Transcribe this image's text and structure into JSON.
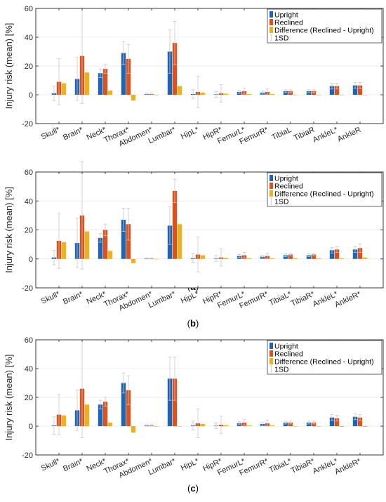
{
  "colors": {
    "upright": "#1f63b4",
    "reclined": "#d9531e",
    "difference": "#edb120",
    "error_bar": "#c8c8c8",
    "axis": "#262626",
    "grid": "#e6e6e6"
  },
  "chart_data": [
    {
      "type": "bar",
      "panel_label": "(a)",
      "ylabel": "Injury risk (mean) [%]",
      "ylim": [
        -20,
        60
      ],
      "yticks": [
        -20,
        0,
        20,
        40,
        60
      ],
      "grid": "horizontal",
      "legend_position": "top-right",
      "categories": [
        "Skull*",
        "Brain*",
        "Neck*",
        "Thorax*",
        "Abdomen*",
        "Lumbar*",
        "HipL*",
        "HipR*",
        "FemurL*",
        "FemurR*",
        "TibiaL",
        "TibiaR",
        "AnkleL*",
        "AnkleR"
      ],
      "series": [
        {
          "name": "Upright",
          "values": [
            1,
            11,
            15,
            29,
            0.5,
            30,
            0.5,
            0.3,
            2,
            1.5,
            2.5,
            2.5,
            6,
            6.5
          ],
          "sd": [
            5,
            15,
            3,
            8,
            0.5,
            15,
            3,
            2,
            1,
            1,
            1,
            1,
            2,
            2
          ]
        },
        {
          "name": "Reclined",
          "values": [
            9,
            27,
            18,
            25,
            0.5,
            36,
            2,
            1,
            2.5,
            2,
            2.5,
            2.5,
            6,
            6.5
          ],
          "sd": [
            16,
            33,
            3,
            10,
            0.5,
            15,
            11,
            6,
            2,
            2,
            1,
            1,
            2,
            2
          ]
        },
        {
          "name": "Difference (Reclined - Upright)",
          "values": [
            8,
            15.5,
            3,
            -4,
            0,
            6,
            1.5,
            0.7,
            0.5,
            0.5,
            0,
            0,
            0,
            0
          ]
        }
      ],
      "error_bar_label": "1SD"
    },
    {
      "type": "bar",
      "panel_label": "(b)",
      "ylabel": "Injury risk (mean) [%]",
      "ylim": [
        -20,
        60
      ],
      "yticks": [
        -20,
        0,
        20,
        40,
        60
      ],
      "grid": "horizontal",
      "legend_position": "top-right",
      "categories": [
        "Skull*",
        "Brain*",
        "Neck*",
        "Thorax*",
        "Abdomen*",
        "Lumbar*",
        "HipL*",
        "HipR*",
        "FemurL*",
        "FemurR*",
        "TibiaL*",
        "TibiaR*",
        "AnkleL*",
        "AnkleR*"
      ],
      "series": [
        {
          "name": "Upright",
          "values": [
            1,
            11,
            14.5,
            27,
            0.3,
            23,
            0.5,
            0.3,
            2,
            1.5,
            2.5,
            2.5,
            6,
            6.5
          ],
          "sd": [
            5,
            17,
            3,
            8,
            0.3,
            13,
            3,
            2,
            1,
            1,
            1,
            1,
            2,
            2
          ]
        },
        {
          "name": "Reclined",
          "values": [
            12.5,
            30,
            20,
            24,
            0.3,
            47,
            3,
            1,
            2.5,
            2,
            3,
            3,
            6.5,
            7.5
          ],
          "sd": [
            19,
            37,
            4,
            11,
            0.3,
            8,
            12,
            6,
            2,
            2,
            1,
            1,
            2,
            3
          ]
        },
        {
          "name": "Difference (Reclined - Upright)",
          "values": [
            11.5,
            19,
            5.5,
            -3,
            0,
            24,
            2.5,
            0.7,
            0.5,
            0.5,
            0.5,
            0.5,
            0.5,
            1
          ]
        }
      ],
      "error_bar_label": "1SD"
    },
    {
      "type": "bar",
      "panel_label": "(c)",
      "ylabel": "Injury risk (mean) [%]",
      "ylim": [
        -20,
        60
      ],
      "yticks": [
        -20,
        0,
        20,
        40,
        60
      ],
      "grid": "horizontal",
      "legend_position": "top-right",
      "categories": [
        "Skull*",
        "Brain*",
        "Neck*",
        "Thorax*",
        "Abdomen*",
        "Lumbar*",
        "HipL*",
        "HipR*",
        "FemurL*",
        "FemurR*",
        "TibiaL*",
        "TibiaR*",
        "AnkleL*",
        "AnkleR*"
      ],
      "series": [
        {
          "name": "Upright",
          "values": [
            0.5,
            11,
            15,
            30,
            0.5,
            33,
            0.5,
            0.3,
            2,
            1.5,
            2.5,
            2.5,
            6,
            6.5
          ],
          "sd": [
            6,
            14,
            3,
            7,
            0.5,
            15,
            3,
            2,
            1,
            1,
            1,
            1,
            2,
            2
          ]
        },
        {
          "name": "Reclined",
          "values": [
            8,
            26,
            17,
            25,
            0.5,
            33,
            2,
            1,
            2.5,
            2,
            2.5,
            2.5,
            5.5,
            6
          ],
          "sd": [
            14,
            34,
            3,
            10,
            0.5,
            15,
            10,
            6,
            2,
            2,
            1,
            1,
            2,
            2
          ]
        },
        {
          "name": "Difference (Reclined - Upright)",
          "values": [
            7.5,
            15,
            2.5,
            -4.5,
            0,
            0,
            1.5,
            0.7,
            0.5,
            0.5,
            0,
            0,
            -0.5,
            -0.5
          ]
        }
      ],
      "error_bar_label": "1SD"
    }
  ]
}
